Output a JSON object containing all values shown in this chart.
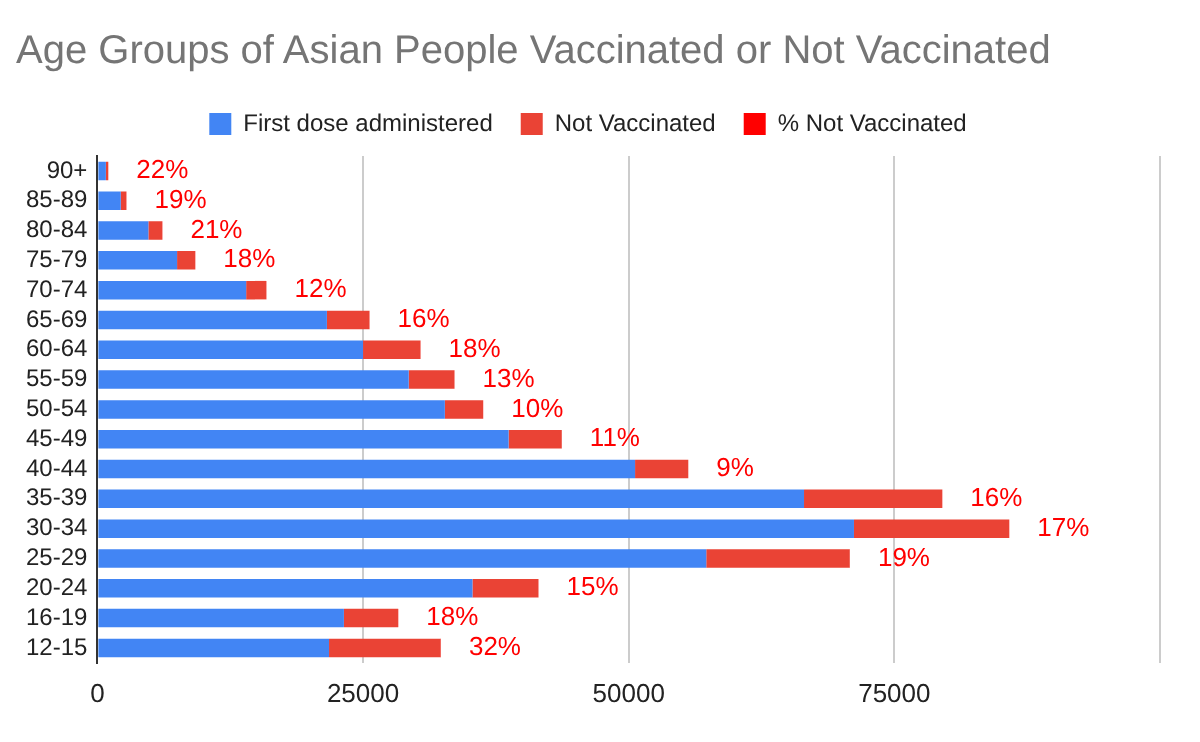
{
  "chart_data": {
    "type": "bar",
    "orientation": "horizontal",
    "stacked": true,
    "title": "Age Groups of Asian People Vaccinated or Not Vaccinated",
    "categories": [
      "90+",
      "85-89",
      "80-84",
      "75-79",
      "70-74",
      "65-69",
      "60-64",
      "55-59",
      "50-54",
      "45-49",
      "40-44",
      "35-39",
      "30-34",
      "25-29",
      "20-24",
      "16-19",
      "12-15"
    ],
    "series": [
      {
        "name": "First dose administered",
        "color": "#4285f4",
        "values": [
          800,
          2200,
          4800,
          7500,
          14000,
          21600,
          25000,
          29300,
          32700,
          38700,
          50600,
          66500,
          71200,
          57300,
          35300,
          23200,
          21800
        ]
      },
      {
        "name": "Not Vaccinated",
        "color": "#ea4335",
        "values": [
          200,
          520,
          1300,
          1700,
          1900,
          4000,
          5400,
          4300,
          3600,
          5000,
          5000,
          13000,
          14600,
          13500,
          6200,
          5100,
          10500
        ]
      },
      {
        "name": "% Not Vaccinated",
        "color": "#ff0000",
        "values": [
          22,
          19,
          21,
          18,
          12,
          16,
          18,
          13,
          10,
          11,
          9,
          16,
          17,
          19,
          15,
          18,
          32
        ],
        "value_labels": [
          "22%",
          "19%",
          "21%",
          "18%",
          "12%",
          "16%",
          "18%",
          "13%",
          "10%",
          "11%",
          "9%",
          "16%",
          "17%",
          "19%",
          "15%",
          "18%",
          "32%"
        ]
      }
    ],
    "xlim": [
      0,
      100000
    ],
    "xticks": [
      0,
      25000,
      50000,
      75000,
      {
        "value": 100000,
        "label": null
      }
    ],
    "grid": "x",
    "legend": "top"
  }
}
